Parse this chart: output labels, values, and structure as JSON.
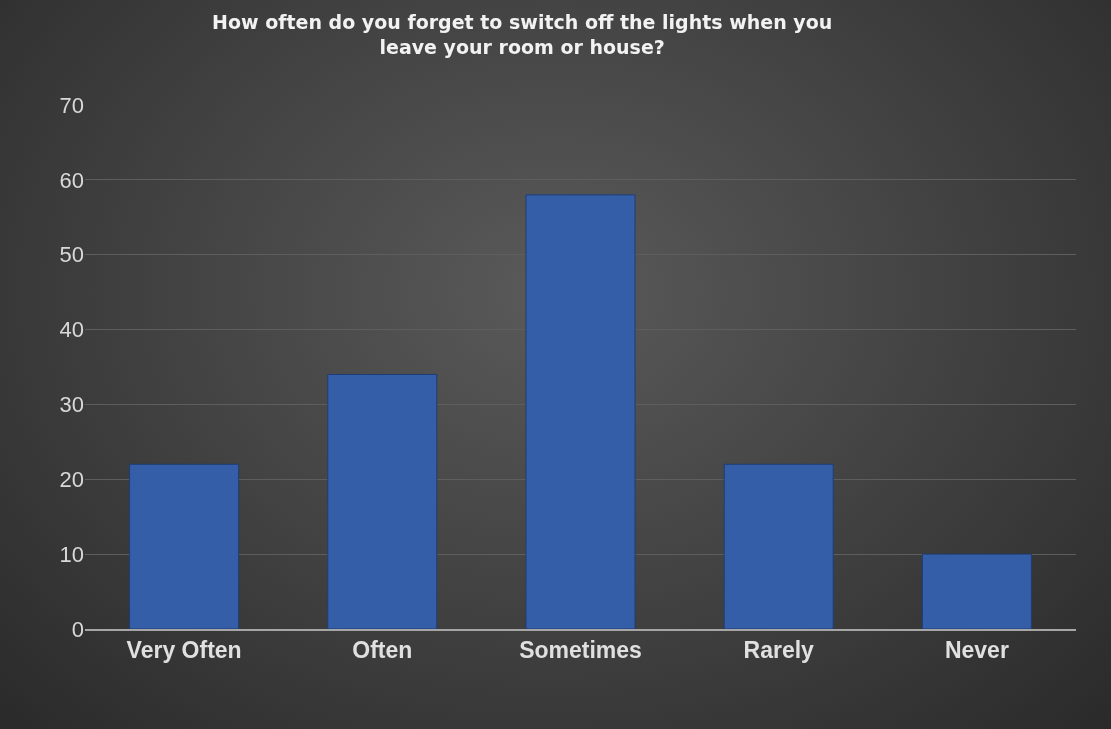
{
  "chart_data": {
    "type": "bar",
    "title": "How often do you forget to switch off the lights when you leave your room or house?",
    "categories": [
      "Very Often",
      "Often",
      "Sometimes",
      "Rarely",
      "Never"
    ],
    "values": [
      22,
      34,
      58,
      22,
      10
    ],
    "color": "#355ea8",
    "ylim": [
      0,
      70
    ],
    "yticks": [
      0,
      10,
      20,
      30,
      40,
      50,
      60,
      70
    ],
    "grid": "y",
    "legend": false
  }
}
